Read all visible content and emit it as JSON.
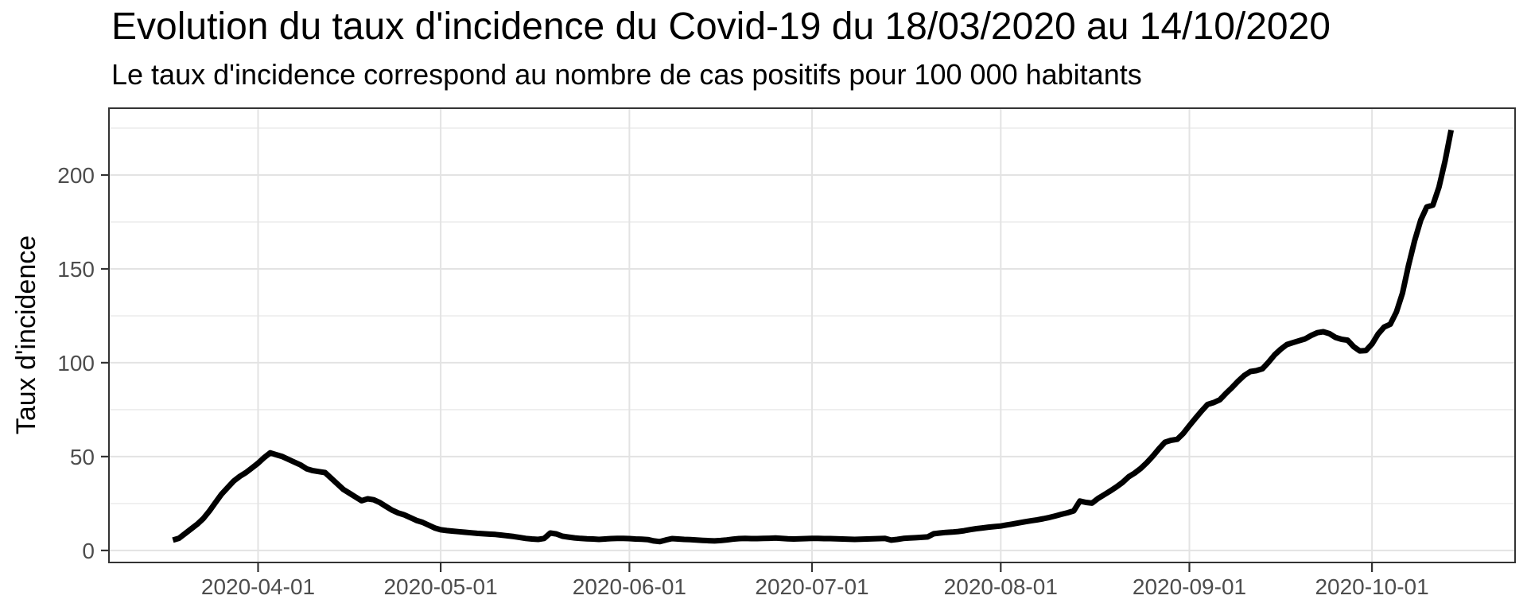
{
  "chart_data": {
    "type": "line",
    "title": "Evolution du taux d'incidence du Covid-19 du 18/03/2020 au 14/10/2020",
    "subtitle": "Le taux d'incidence correspond au nombre de cas positifs pour 100 000 habitants",
    "ylabel": "Taux d'incidence",
    "xlabel": "",
    "legend": "none",
    "grid": "horizontal major+minor, vertical major only",
    "ylim": [
      -6.4,
      235.6
    ],
    "y_axis": {
      "tick_values": [
        0,
        50,
        100,
        150,
        200
      ],
      "tick_labels": [
        "0",
        "50",
        "100",
        "150",
        "200"
      ],
      "minor_tick_values": [
        25,
        75,
        125,
        175,
        225
      ]
    },
    "x_axis": {
      "start_date": "2020-03-18",
      "end_date": "2020-10-14",
      "total_days": 210,
      "expand_days": 10.5,
      "tick_labels": [
        "2020-04-01",
        "2020-05-01",
        "2020-06-01",
        "2020-07-01",
        "2020-08-01",
        "2020-09-01",
        "2020-10-01"
      ],
      "tick_day_index": [
        14,
        44,
        75,
        105,
        136,
        167,
        197
      ]
    },
    "series": [
      {
        "name": "Taux d'incidence",
        "color": "#000000",
        "stroke_width": 7,
        "start_date": "2020-03-18",
        "daily_values": [
          5.5,
          6.5,
          9.0,
          11.5,
          14.0,
          17.0,
          21.0,
          25.5,
          30.0,
          33.5,
          37.0,
          39.5,
          41.5,
          44.0,
          46.5,
          49.5,
          52.0,
          51.0,
          50.0,
          48.5,
          47.0,
          45.5,
          43.5,
          42.5,
          42.0,
          41.5,
          38.5,
          35.5,
          32.5,
          30.5,
          28.5,
          26.5,
          27.5,
          27.0,
          25.5,
          23.5,
          21.5,
          20.0,
          19.0,
          17.5,
          16.0,
          15.0,
          13.5,
          12.0,
          11.0,
          10.6,
          10.3,
          10.0,
          9.7,
          9.4,
          9.1,
          8.9,
          8.7,
          8.5,
          8.2,
          7.8,
          7.4,
          6.9,
          6.4,
          6.1,
          5.9,
          6.4,
          9.3,
          8.8,
          7.6,
          7.1,
          6.7,
          6.4,
          6.2,
          6.1,
          5.9,
          6.1,
          6.3,
          6.4,
          6.4,
          6.3,
          6.1,
          6.0,
          5.8,
          5.1,
          4.7,
          5.6,
          6.3,
          6.1,
          5.9,
          5.8,
          5.6,
          5.4,
          5.2,
          5.1,
          5.3,
          5.6,
          6.0,
          6.3,
          6.4,
          6.3,
          6.3,
          6.4,
          6.5,
          6.6,
          6.4,
          6.2,
          6.1,
          6.2,
          6.3,
          6.4,
          6.4,
          6.3,
          6.3,
          6.2,
          6.1,
          6.0,
          5.9,
          6.0,
          6.1,
          6.2,
          6.3,
          6.4,
          5.5,
          5.9,
          6.4,
          6.6,
          6.8,
          7.0,
          7.2,
          8.9,
          9.3,
          9.6,
          9.8,
          10.1,
          10.5,
          11.1,
          11.6,
          12.0,
          12.4,
          12.7,
          13.0,
          13.6,
          14.1,
          14.7,
          15.3,
          15.8,
          16.3,
          16.9,
          17.6,
          18.4,
          19.3,
          20.1,
          21.1,
          26.3,
          25.6,
          25.2,
          27.7,
          29.7,
          31.7,
          33.8,
          36.2,
          39.2,
          41.2,
          43.7,
          46.8,
          50.3,
          54.2,
          57.7,
          58.7,
          59.2,
          62.4,
          66.5,
          70.5,
          74.3,
          77.8,
          78.8,
          80.3,
          83.7,
          86.8,
          90.2,
          93.2,
          95.3,
          95.8,
          96.8,
          100.3,
          104.2,
          107.2,
          109.7,
          110.7,
          111.7,
          112.7,
          114.5,
          116.0,
          116.5,
          115.5,
          113.5,
          112.5,
          112.0,
          108.5,
          106.3,
          106.5,
          110.0,
          115.3,
          119.0,
          120.5,
          127.0,
          137.0,
          152.0,
          165.0,
          176.0,
          183.0,
          184.0,
          193.5,
          207.5,
          224.0
        ]
      }
    ],
    "colors": {
      "line": "#000000",
      "panel_background": "#ffffff",
      "plot_background": "#ffffff",
      "grid_major": "#e3e3e3",
      "grid_minor": "#eeeeee",
      "panel_border": "#333333",
      "tick_mark": "#333333",
      "tick_label": "#4d4d4d",
      "title_text": "#000000"
    }
  }
}
